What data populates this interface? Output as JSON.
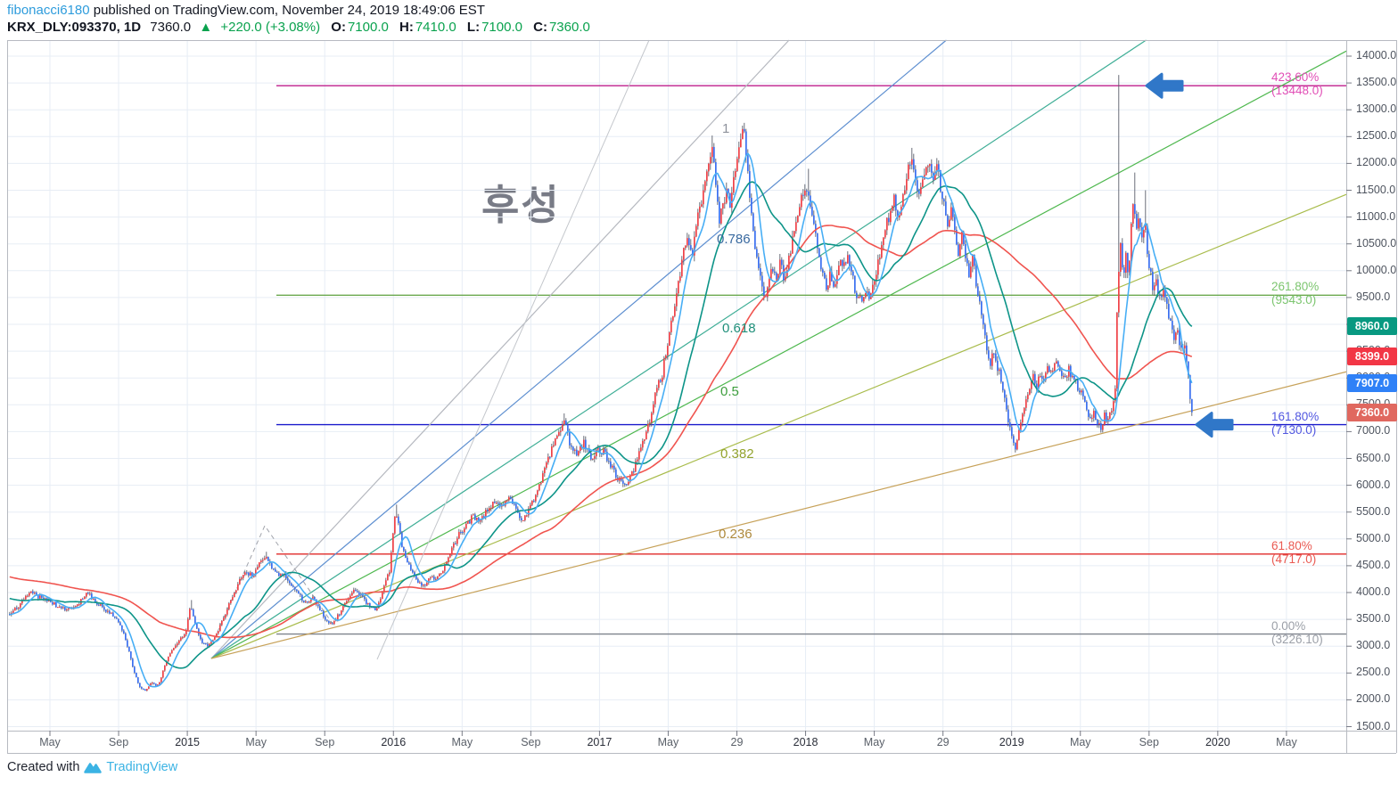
{
  "header": {
    "byline": {
      "user": "fibonacci6180",
      "rest": " published on TradingView.com, November 24, 2019 18:49:06 EST"
    },
    "symbol_line": {
      "symbol": "KRX_DLY:093370, 1D",
      "last": "7360.0",
      "up_arrow": "▲",
      "change": "+220.0 (+3.08%)",
      "o_label": "O:",
      "o_value": "7100.0",
      "h_label": "H:",
      "h_value": "7410.0",
      "l_label": "L:",
      "l_value": "7100.0",
      "c_label": "C:",
      "c_value": "7360.0"
    }
  },
  "watermark": "후성",
  "footer": {
    "created": "Created with",
    "brand": "TradingView"
  },
  "badges": [
    {
      "label": "8960.0",
      "value": 8960,
      "color": "#089981"
    },
    {
      "label": "8399.0",
      "value": 8399,
      "color": "#f23645"
    },
    {
      "label": "7907.0",
      "value": 7907,
      "color": "#2f81f7"
    },
    {
      "label": "7360.0",
      "value": 7360,
      "color": "#e0685f"
    }
  ],
  "chart_data": {
    "type": "candlestick",
    "symbol": "KRX_DLY:093370",
    "interval": "1D",
    "title_watermark": "후성",
    "last": {
      "open": 7100.0,
      "high": 7410.0,
      "low": 7100.0,
      "close": 7360.0,
      "change": "+220.0",
      "change_pct": "+3.08%"
    },
    "y_axis": {
      "min": 1500,
      "max": 14000,
      "tick_step": 500
    },
    "x_ticks": [
      "May",
      "Sep",
      "2015",
      "May",
      "Sep",
      "2016",
      "May",
      "Sep",
      "2017",
      "May",
      "29",
      "2018",
      "May",
      "29",
      "2019",
      "May",
      "Sep",
      "2020",
      "May"
    ],
    "candle_colors": {
      "up": "#ef4147",
      "down": "#3a6ff0",
      "wick": "#5a5f6b"
    },
    "fib_retracement_levels": [
      {
        "label": "423.60%(13448.0)",
        "pct": "423.60%",
        "price": 13448.0,
        "line_color": "#be1e8c",
        "text_color": "#e14fb6"
      },
      {
        "label": "261.80%(9543.0)",
        "pct": "261.80%",
        "price": 9543.0,
        "line_color": "#6ba84f",
        "text_color": "#7cc56f"
      },
      {
        "label": "161.80%(7130.0)",
        "pct": "161.80%",
        "price": 7130.0,
        "line_color": "#1a1acc",
        "text_color": "#5157e0"
      },
      {
        "label": "61.80%(4717.0)",
        "pct": "61.80%",
        "price": 4717.0,
        "line_color": "#e02a28",
        "text_color": "#ea5a52"
      },
      {
        "label": "0.00%(3226.10)",
        "pct": "0.00%",
        "price": 3226.1,
        "line_color": "#7e828c",
        "text_color": "#9ca0a8"
      }
    ],
    "fib_fan_levels": [
      {
        "label": "1",
        "level": 1.0,
        "line_color": "#b5b8bf",
        "label_color": "#8e929c"
      },
      {
        "label": "0.786",
        "level": 0.786,
        "line_color": "#5e8fd0",
        "label_color": "#39699f"
      },
      {
        "label": "0.618",
        "level": 0.618,
        "line_color": "#3fae96",
        "label_color": "#1f8f7a"
      },
      {
        "label": "0.5",
        "level": 0.5,
        "line_color": "#4fb84f",
        "label_color": "#3d9e3d"
      },
      {
        "label": "0.382",
        "level": 0.382,
        "line_color": "#a9bc4c",
        "label_color": "#93a32f"
      },
      {
        "label": "0.236",
        "level": 0.236,
        "line_color": "#c7a25a",
        "label_color": "#ae8a3e"
      }
    ],
    "moving_averages": [
      {
        "name": "ma-fast",
        "color": "#47aef5",
        "last_value": 7907.0
      },
      {
        "name": "ma-mid",
        "color": "#0d9488",
        "last_value": 8960.0
      },
      {
        "name": "ma-slow",
        "color": "#f0544f",
        "last_value": 8399.0
      }
    ],
    "price_path": [
      [
        10,
        3600
      ],
      [
        20,
        3760
      ],
      [
        33,
        4020
      ],
      [
        45,
        3900
      ],
      [
        56,
        3820
      ],
      [
        70,
        3690
      ],
      [
        85,
        3750
      ],
      [
        97,
        3990
      ],
      [
        110,
        3780
      ],
      [
        120,
        3640
      ],
      [
        133,
        3470
      ],
      [
        140,
        3120
      ],
      [
        148,
        2640
      ],
      [
        155,
        2250
      ],
      [
        162,
        2190
      ],
      [
        170,
        2310
      ],
      [
        177,
        2260
      ],
      [
        185,
        2700
      ],
      [
        192,
        2950
      ],
      [
        200,
        3090
      ],
      [
        207,
        3250
      ],
      [
        213,
        3740
      ],
      [
        219,
        3340
      ],
      [
        225,
        3100
      ],
      [
        231,
        3000
      ],
      [
        237,
        3110
      ],
      [
        244,
        3310
      ],
      [
        252,
        3620
      ],
      [
        260,
        3920
      ],
      [
        268,
        4240
      ],
      [
        276,
        4380
      ],
      [
        284,
        4310
      ],
      [
        292,
        4610
      ],
      [
        297,
        4700
      ],
      [
        304,
        4470
      ],
      [
        311,
        4300
      ],
      [
        318,
        4360
      ],
      [
        326,
        4090
      ],
      [
        334,
        3950
      ],
      [
        342,
        3810
      ],
      [
        350,
        3900
      ],
      [
        358,
        3690
      ],
      [
        365,
        3500
      ],
      [
        372,
        3390
      ],
      [
        380,
        3620
      ],
      [
        388,
        3860
      ],
      [
        396,
        4090
      ],
      [
        404,
        3940
      ],
      [
        412,
        3790
      ],
      [
        420,
        3660
      ],
      [
        428,
        4010
      ],
      [
        436,
        4420
      ],
      [
        443,
        5520
      ],
      [
        450,
        4890
      ],
      [
        458,
        4490
      ],
      [
        466,
        4240
      ],
      [
        474,
        4110
      ],
      [
        482,
        4310
      ],
      [
        490,
        4260
      ],
      [
        498,
        4510
      ],
      [
        506,
        4790
      ],
      [
        514,
        5090
      ],
      [
        522,
        5240
      ],
      [
        530,
        5440
      ],
      [
        538,
        5310
      ],
      [
        546,
        5540
      ],
      [
        554,
        5690
      ],
      [
        562,
        5640
      ],
      [
        570,
        5790
      ],
      [
        578,
        5540
      ],
      [
        586,
        5310
      ],
      [
        594,
        5590
      ],
      [
        602,
        5890
      ],
      [
        610,
        6280
      ],
      [
        618,
        6690
      ],
      [
        626,
        6990
      ],
      [
        632,
        7230
      ],
      [
        638,
        6810
      ],
      [
        646,
        6610
      ],
      [
        654,
        6790
      ],
      [
        662,
        6510
      ],
      [
        670,
        6690
      ],
      [
        678,
        6590
      ],
      [
        686,
        6310
      ],
      [
        694,
        6090
      ],
      [
        702,
        5960
      ],
      [
        710,
        6290
      ],
      [
        718,
        6690
      ],
      [
        726,
        7090
      ],
      [
        734,
        7690
      ],
      [
        742,
        8090
      ],
      [
        750,
        8890
      ],
      [
        758,
        9590
      ],
      [
        764,
        10190
      ],
      [
        770,
        10690
      ],
      [
        776,
        10390
      ],
      [
        782,
        10990
      ],
      [
        788,
        11390
      ],
      [
        794,
        11990
      ],
      [
        798,
        12420
      ],
      [
        802,
        11590
      ],
      [
        806,
        10890
      ],
      [
        810,
        11190
      ],
      [
        814,
        11590
      ],
      [
        818,
        11290
      ],
      [
        822,
        11690
      ],
      [
        826,
        12090
      ],
      [
        830,
        12390
      ],
      [
        834,
        12620
      ],
      [
        838,
        11790
      ],
      [
        842,
        10990
      ],
      [
        846,
        10390
      ],
      [
        850,
        10090
      ],
      [
        854,
        9790
      ],
      [
        858,
        9490
      ],
      [
        862,
        9890
      ],
      [
        866,
        10090
      ],
      [
        870,
        9890
      ],
      [
        874,
        10190
      ],
      [
        878,
        9890
      ],
      [
        882,
        10090
      ],
      [
        886,
        10390
      ],
      [
        890,
        10790
      ],
      [
        894,
        11090
      ],
      [
        898,
        11290
      ],
      [
        902,
        11490
      ],
      [
        906,
        11290
      ],
      [
        910,
        10990
      ],
      [
        914,
        10690
      ],
      [
        918,
        10190
      ],
      [
        922,
        9890
      ],
      [
        926,
        9690
      ],
      [
        930,
        9890
      ],
      [
        934,
        9690
      ],
      [
        938,
        9990
      ],
      [
        942,
        10190
      ],
      [
        946,
        10090
      ],
      [
        950,
        10290
      ],
      [
        954,
        9990
      ],
      [
        958,
        9690
      ],
      [
        962,
        9490
      ],
      [
        966,
        9390
      ],
      [
        970,
        9590
      ],
      [
        974,
        9490
      ],
      [
        978,
        9690
      ],
      [
        982,
        9990
      ],
      [
        986,
        10290
      ],
      [
        990,
        10590
      ],
      [
        994,
        10890
      ],
      [
        998,
        11090
      ],
      [
        1002,
        11290
      ],
      [
        1006,
        10990
      ],
      [
        1010,
        11290
      ],
      [
        1014,
        11590
      ],
      [
        1018,
        11890
      ],
      [
        1022,
        11990
      ],
      [
        1026,
        11690
      ],
      [
        1030,
        11390
      ],
      [
        1034,
        11590
      ],
      [
        1038,
        11890
      ],
      [
        1042,
        11990
      ],
      [
        1046,
        11790
      ],
      [
        1050,
        11990
      ],
      [
        1054,
        11590
      ],
      [
        1058,
        11190
      ],
      [
        1062,
        10890
      ],
      [
        1066,
        11090
      ],
      [
        1070,
        10790
      ],
      [
        1074,
        10390
      ],
      [
        1078,
        10690
      ],
      [
        1082,
        10290
      ],
      [
        1086,
        9890
      ],
      [
        1090,
        10190
      ],
      [
        1094,
        9790
      ],
      [
        1098,
        9390
      ],
      [
        1102,
        8990
      ],
      [
        1106,
        8590
      ],
      [
        1110,
        8290
      ],
      [
        1114,
        8490
      ],
      [
        1118,
        8190
      ],
      [
        1122,
        7990
      ],
      [
        1126,
        7590
      ],
      [
        1130,
        7190
      ],
      [
        1134,
        6890
      ],
      [
        1138,
        6650
      ],
      [
        1142,
        6990
      ],
      [
        1146,
        7290
      ],
      [
        1150,
        7590
      ],
      [
        1154,
        7790
      ],
      [
        1158,
        7990
      ],
      [
        1162,
        7790
      ],
      [
        1166,
        8090
      ],
      [
        1170,
        7990
      ],
      [
        1174,
        8190
      ],
      [
        1178,
        8090
      ],
      [
        1182,
        8290
      ],
      [
        1186,
        8190
      ],
      [
        1190,
        8090
      ],
      [
        1194,
        7990
      ],
      [
        1198,
        8140
      ],
      [
        1202,
        8040
      ],
      [
        1206,
        7890
      ],
      [
        1210,
        7790
      ],
      [
        1214,
        7590
      ],
      [
        1218,
        7390
      ],
      [
        1222,
        7190
      ],
      [
        1226,
        7390
      ],
      [
        1230,
        7190
      ],
      [
        1234,
        7090
      ],
      [
        1238,
        7290
      ],
      [
        1242,
        7190
      ],
      [
        1246,
        7390
      ],
      [
        1250,
        7790
      ],
      [
        1253,
        9790
      ],
      [
        1256,
        10490
      ],
      [
        1259,
        9790
      ],
      [
        1262,
        10290
      ],
      [
        1265,
        9890
      ],
      [
        1268,
        10790
      ],
      [
        1271,
        11290
      ],
      [
        1274,
        10790
      ],
      [
        1277,
        11090
      ],
      [
        1280,
        10590
      ],
      [
        1283,
        10990
      ],
      [
        1286,
        10390
      ],
      [
        1289,
        9990
      ],
      [
        1292,
        9690
      ],
      [
        1295,
        9890
      ],
      [
        1298,
        9590
      ],
      [
        1301,
        9390
      ],
      [
        1304,
        9690
      ],
      [
        1307,
        9490
      ],
      [
        1310,
        9190
      ],
      [
        1313,
        8990
      ],
      [
        1316,
        8790
      ],
      [
        1319,
        8890
      ],
      [
        1322,
        8690
      ],
      [
        1325,
        8490
      ],
      [
        1328,
        8590
      ],
      [
        1331,
        8290
      ],
      [
        1334,
        7590
      ],
      [
        1337,
        7360
      ]
    ],
    "spike_highs": [
      [
        213,
        3860
      ],
      [
        297,
        4760
      ],
      [
        443,
        5640
      ],
      [
        632,
        7340
      ],
      [
        798,
        12520
      ],
      [
        834,
        12700
      ],
      [
        905,
        11900
      ],
      [
        1022,
        12290
      ],
      [
        1050,
        12100
      ],
      [
        1253,
        13650
      ],
      [
        1271,
        11830
      ],
      [
        1283,
        11500
      ]
    ],
    "annotations": {
      "arrows": [
        {
          "name": "arrow-at-423-level",
          "x_tip": 1286,
          "price": 13448.0,
          "color": "#3077c8"
        },
        {
          "name": "arrow-at-161-level",
          "x_tip": 1342,
          "price": 7130.0,
          "color": "#3077c8"
        }
      ]
    }
  }
}
